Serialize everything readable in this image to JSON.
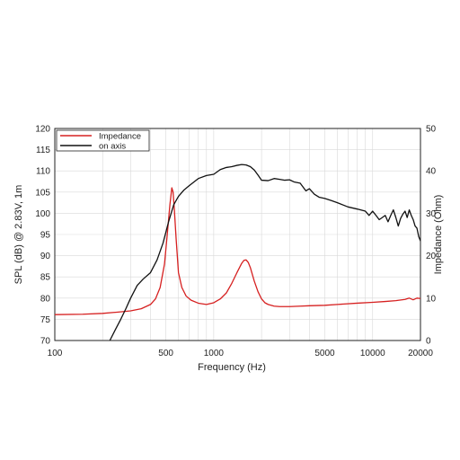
{
  "chart_data": {
    "type": "line",
    "xlabel": "Frequency (Hz)",
    "ylabel_left": "SPL (dB) @ 2.83V, 1m",
    "ylabel_right": "Impedance (Ohm)",
    "x_scale": "log",
    "xlim": [
      100,
      20000
    ],
    "ylim_left": [
      70,
      120
    ],
    "ylim_right": [
      0,
      50
    ],
    "x_ticks": [
      100,
      500,
      1000,
      5000,
      10000,
      20000
    ],
    "x_tick_labels": [
      "100",
      "500",
      "1000",
      "5000",
      "10000",
      "20000"
    ],
    "y_ticks_left": [
      70,
      75,
      80,
      85,
      90,
      95,
      100,
      105,
      110,
      115,
      120
    ],
    "y_ticks_right": [
      0,
      10,
      20,
      30,
      40,
      50
    ],
    "grid": true,
    "legend_position": "top-left",
    "colors": {
      "impedance": "#d62020",
      "on_axis": "#111111",
      "grid": "#d9d9d9"
    },
    "series": [
      {
        "name": "Impedance",
        "axis": "right",
        "x": [
          100,
          150,
          200,
          250,
          300,
          350,
          400,
          430,
          460,
          490,
          510,
          530,
          545,
          555,
          565,
          580,
          600,
          630,
          670,
          720,
          800,
          900,
          1000,
          1100,
          1200,
          1300,
          1400,
          1500,
          1550,
          1600,
          1650,
          1700,
          1800,
          1900,
          2000,
          2100,
          2200,
          2400,
          2600,
          3000,
          3500,
          4000,
          5000,
          6000,
          8000,
          10000,
          12000,
          14000,
          16000,
          17000,
          18000,
          19000,
          20000
        ],
        "y": [
          6.1,
          6.2,
          6.4,
          6.7,
          7.0,
          7.5,
          8.5,
          9.8,
          12.5,
          18,
          25,
          32,
          36,
          35,
          31,
          24,
          16,
          12.5,
          10.5,
          9.5,
          8.8,
          8.5,
          8.9,
          9.8,
          11.2,
          13.5,
          16,
          18.2,
          18.9,
          19.0,
          18.4,
          17.2,
          14.0,
          11.5,
          9.8,
          8.9,
          8.5,
          8.1,
          8.0,
          8.0,
          8.1,
          8.2,
          8.3,
          8.5,
          8.8,
          9.0,
          9.2,
          9.4,
          9.7,
          10.0,
          9.6,
          10.0,
          9.9
        ]
      },
      {
        "name": "on axis",
        "axis": "left",
        "x": [
          222,
          240,
          260,
          280,
          300,
          330,
          360,
          400,
          440,
          480,
          520,
          560,
          600,
          650,
          700,
          800,
          900,
          1000,
          1100,
          1200,
          1300,
          1400,
          1500,
          1600,
          1700,
          1800,
          1900,
          2000,
          2200,
          2400,
          2600,
          2800,
          3000,
          3200,
          3500,
          3800,
          4000,
          4300,
          4600,
          5000,
          5500,
          6000,
          7000,
          8000,
          9000,
          9500,
          10000,
          10500,
          11000,
          11500,
          12000,
          12500,
          13000,
          13500,
          14000,
          14500,
          15000,
          15500,
          16000,
          16500,
          17000,
          17500,
          18000,
          18500,
          19000,
          19500,
          20000
        ],
        "y": [
          70,
          72.5,
          75,
          77.5,
          80,
          83,
          84.5,
          86,
          89,
          93,
          98,
          102,
          104,
          105.5,
          106.5,
          108.2,
          108.9,
          109.2,
          110.3,
          110.8,
          111.0,
          111.3,
          111.5,
          111.4,
          111.0,
          110.2,
          109.0,
          107.8,
          107.7,
          108.2,
          108.0,
          107.8,
          107.9,
          107.4,
          107.1,
          105.3,
          105.8,
          104.5,
          103.8,
          103.5,
          103.0,
          102.5,
          101.5,
          101.0,
          100.5,
          99.5,
          100.5,
          99.5,
          98.5,
          99.0,
          99.5,
          98.0,
          99.5,
          100.8,
          99.0,
          97.0,
          98.8,
          99.8,
          100.5,
          99.0,
          100.8,
          99.5,
          98.5,
          97.0,
          96.5,
          94.5,
          93.5
        ]
      }
    ]
  }
}
